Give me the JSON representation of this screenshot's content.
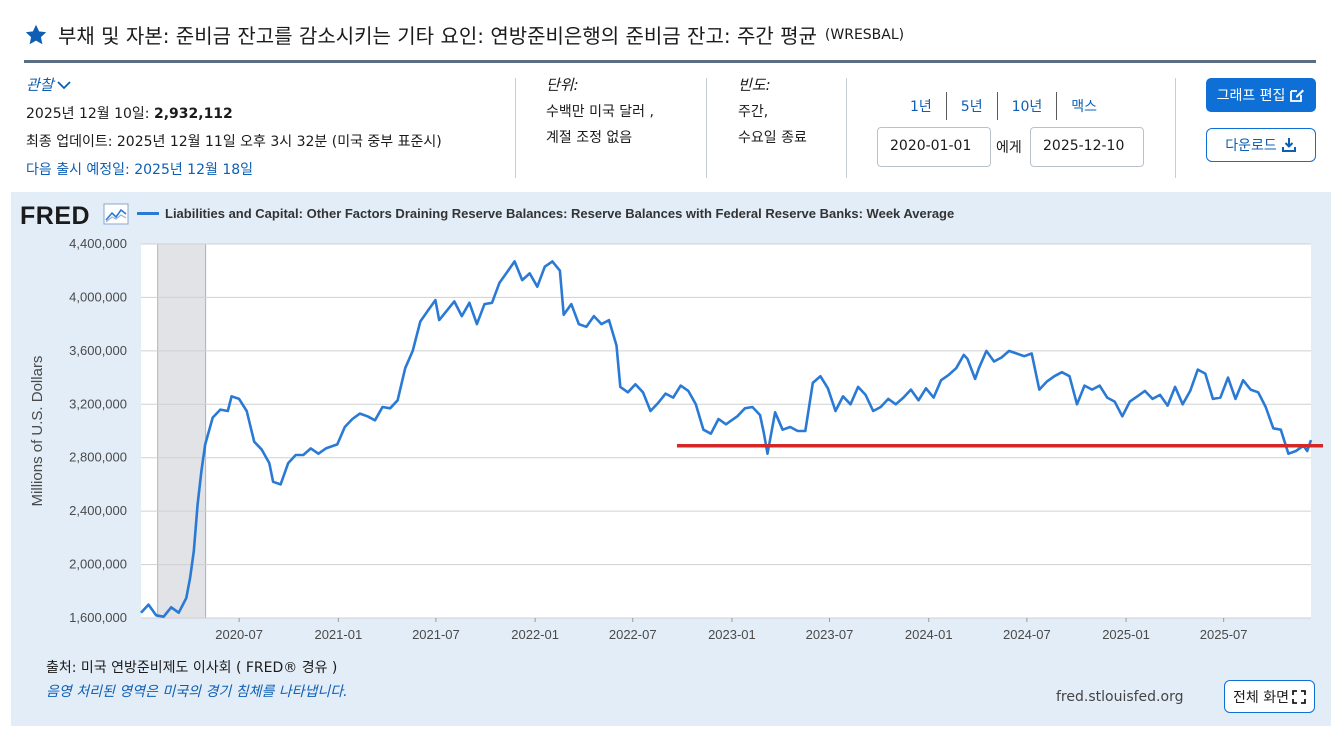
{
  "header": {
    "title": "부채 및 자본: 준비금 잔고를 감소시키는 기타 요인: 연방준비은행의 준비금 잔고: 주간 평균",
    "series_id": "(WRESBAL)"
  },
  "observation": {
    "heading": "관찰",
    "date_label": "2025년 12월 10일:",
    "value": "2,932,112",
    "updated": "최종 업데이트: 2025년 12월 11일 오후 3시 32분 (미국 중부 표준시)",
    "next_release": "다음 출시 예정일: 2025년 12월 18일"
  },
  "units": {
    "heading": "단위:",
    "line1": "수백만 미국 달러 ,",
    "line2": "계절 조정 없음"
  },
  "frequency": {
    "heading": "빈도:",
    "line1": "주간,",
    "line2": "수요일 종료"
  },
  "range": {
    "links": [
      "1년",
      "5년",
      "10년",
      "맥스"
    ],
    "start": "2020-01-01",
    "to_label": "에게",
    "end": "2025-12-10"
  },
  "buttons": {
    "edit": "그래프 편집",
    "download": "다운로드",
    "fullscreen": "전체 화면"
  },
  "footer": {
    "source": "출처: 미국 연방준비제도 이사회 ( FRED® 경유 )",
    "shade_note": "음영 처리된 영역은 미국의 경기 침체를 나타냅니다.",
    "site": "fred.stlouisfed.org"
  },
  "logo": "FRED",
  "colors": {
    "series": "#2a7ad5",
    "annotation_line": "#d62728",
    "recession": "#e1e3e6",
    "panel": "#e2edf7",
    "accent": "#0e6fd6"
  },
  "chart_data": {
    "type": "line",
    "legend": "Liabilities and Capital: Other Factors Draining Reserve Balances: Reserve Balances with Federal Reserve Banks: Week Average",
    "ylabel": "Millions of U.S. Dollars",
    "ylim": [
      1600000,
      4400000
    ],
    "yticks": [
      1600000,
      2000000,
      2400000,
      2800000,
      3200000,
      3600000,
      4000000,
      4400000
    ],
    "ytick_labels": [
      "1,600,000",
      "2,000,000",
      "2,400,000",
      "2,800,000",
      "3,200,000",
      "3,600,000",
      "4,000,000",
      "4,400,000"
    ],
    "xlim": [
      "2020-01-01",
      "2025-12-10"
    ],
    "xticks": [
      "2020-07-01",
      "2021-01-01",
      "2021-07-01",
      "2022-01-01",
      "2022-07-01",
      "2023-01-01",
      "2023-07-01",
      "2024-01-01",
      "2024-07-01",
      "2025-01-01",
      "2025-07-01"
    ],
    "xtick_labels": [
      "2020-07",
      "2021-01",
      "2021-07",
      "2022-01",
      "2022-07",
      "2023-01",
      "2023-07",
      "2024-01",
      "2024-07",
      "2025-01",
      "2025-07"
    ],
    "grid": true,
    "legend_position": "top-left",
    "recession": {
      "start": "2020-02-01",
      "end": "2020-04-30"
    },
    "annotation_line": {
      "y": 2890000,
      "x_start": "2022-09-21",
      "x_end": "2025-12-10"
    },
    "series": [
      {
        "name": "Liabilities and Capital: Other Factors Draining Reserve Balances: Reserve Balances with Federal Reserve Banks: Week Average",
        "points": [
          [
            "2020-01-01",
            1640000
          ],
          [
            "2020-01-15",
            1700000
          ],
          [
            "2020-01-29",
            1620000
          ],
          [
            "2020-02-12",
            1610000
          ],
          [
            "2020-02-26",
            1680000
          ],
          [
            "2020-03-11",
            1640000
          ],
          [
            "2020-03-25",
            1750000
          ],
          [
            "2020-04-01",
            1900000
          ],
          [
            "2020-04-08",
            2100000
          ],
          [
            "2020-04-15",
            2450000
          ],
          [
            "2020-04-22",
            2700000
          ],
          [
            "2020-04-29",
            2900000
          ],
          [
            "2020-05-13",
            3100000
          ],
          [
            "2020-05-27",
            3160000
          ],
          [
            "2020-06-10",
            3150000
          ],
          [
            "2020-06-17",
            3260000
          ],
          [
            "2020-07-01",
            3240000
          ],
          [
            "2020-07-15",
            3150000
          ],
          [
            "2020-07-29",
            2920000
          ],
          [
            "2020-08-12",
            2860000
          ],
          [
            "2020-08-26",
            2760000
          ],
          [
            "2020-09-02",
            2620000
          ],
          [
            "2020-09-16",
            2600000
          ],
          [
            "2020-09-30",
            2760000
          ],
          [
            "2020-10-14",
            2820000
          ],
          [
            "2020-10-28",
            2820000
          ],
          [
            "2020-11-11",
            2870000
          ],
          [
            "2020-11-25",
            2830000
          ],
          [
            "2020-12-09",
            2870000
          ],
          [
            "2020-12-30",
            2900000
          ],
          [
            "2021-01-13",
            3030000
          ],
          [
            "2021-01-27",
            3090000
          ],
          [
            "2021-02-10",
            3130000
          ],
          [
            "2021-02-24",
            3110000
          ],
          [
            "2021-03-10",
            3080000
          ],
          [
            "2021-03-24",
            3180000
          ],
          [
            "2021-04-07",
            3170000
          ],
          [
            "2021-04-21",
            3230000
          ],
          [
            "2021-05-05",
            3470000
          ],
          [
            "2021-05-19",
            3600000
          ],
          [
            "2021-06-02",
            3820000
          ],
          [
            "2021-06-16",
            3900000
          ],
          [
            "2021-06-30",
            3980000
          ],
          [
            "2021-07-07",
            3830000
          ],
          [
            "2021-07-21",
            3900000
          ],
          [
            "2021-08-04",
            3970000
          ],
          [
            "2021-08-18",
            3860000
          ],
          [
            "2021-09-01",
            3960000
          ],
          [
            "2021-09-15",
            3800000
          ],
          [
            "2021-09-29",
            3950000
          ],
          [
            "2021-10-13",
            3960000
          ],
          [
            "2021-10-27",
            4110000
          ],
          [
            "2021-11-10",
            4190000
          ],
          [
            "2021-11-24",
            4270000
          ],
          [
            "2021-12-08",
            4130000
          ],
          [
            "2021-12-22",
            4180000
          ],
          [
            "2022-01-05",
            4080000
          ],
          [
            "2022-01-19",
            4230000
          ],
          [
            "2022-02-02",
            4270000
          ],
          [
            "2022-02-16",
            4200000
          ],
          [
            "2022-02-23",
            3870000
          ],
          [
            "2022-03-09",
            3950000
          ],
          [
            "2022-03-23",
            3800000
          ],
          [
            "2022-04-06",
            3780000
          ],
          [
            "2022-04-20",
            3860000
          ],
          [
            "2022-05-04",
            3800000
          ],
          [
            "2022-05-18",
            3830000
          ],
          [
            "2022-06-01",
            3640000
          ],
          [
            "2022-06-08",
            3330000
          ],
          [
            "2022-06-22",
            3290000
          ],
          [
            "2022-07-06",
            3350000
          ],
          [
            "2022-07-20",
            3290000
          ],
          [
            "2022-08-03",
            3150000
          ],
          [
            "2022-08-17",
            3210000
          ],
          [
            "2022-08-31",
            3280000
          ],
          [
            "2022-09-14",
            3250000
          ],
          [
            "2022-09-28",
            3340000
          ],
          [
            "2022-10-12",
            3300000
          ],
          [
            "2022-10-26",
            3200000
          ],
          [
            "2022-11-09",
            3010000
          ],
          [
            "2022-11-23",
            2980000
          ],
          [
            "2022-12-07",
            3090000
          ],
          [
            "2022-12-21",
            3050000
          ],
          [
            "2022-12-28",
            3070000
          ],
          [
            "2023-01-11",
            3110000
          ],
          [
            "2023-01-25",
            3170000
          ],
          [
            "2023-02-08",
            3180000
          ],
          [
            "2023-02-22",
            3120000
          ],
          [
            "2023-03-01",
            2990000
          ],
          [
            "2023-03-08",
            2830000
          ],
          [
            "2023-03-22",
            3140000
          ],
          [
            "2023-04-05",
            3010000
          ],
          [
            "2023-04-19",
            3030000
          ],
          [
            "2023-05-03",
            3000000
          ],
          [
            "2023-05-17",
            3000000
          ],
          [
            "2023-05-31",
            3360000
          ],
          [
            "2023-06-14",
            3410000
          ],
          [
            "2023-06-28",
            3320000
          ],
          [
            "2023-07-12",
            3150000
          ],
          [
            "2023-07-26",
            3260000
          ],
          [
            "2023-08-09",
            3200000
          ],
          [
            "2023-08-23",
            3330000
          ],
          [
            "2023-09-06",
            3270000
          ],
          [
            "2023-09-20",
            3150000
          ],
          [
            "2023-10-04",
            3180000
          ],
          [
            "2023-10-18",
            3240000
          ],
          [
            "2023-11-01",
            3200000
          ],
          [
            "2023-11-15",
            3250000
          ],
          [
            "2023-11-29",
            3310000
          ],
          [
            "2023-12-13",
            3230000
          ],
          [
            "2023-12-27",
            3320000
          ],
          [
            "2024-01-10",
            3250000
          ],
          [
            "2024-01-24",
            3380000
          ],
          [
            "2024-02-07",
            3420000
          ],
          [
            "2024-02-21",
            3470000
          ],
          [
            "2024-03-06",
            3570000
          ],
          [
            "2024-03-13",
            3540000
          ],
          [
            "2024-03-27",
            3390000
          ],
          [
            "2024-04-03",
            3470000
          ],
          [
            "2024-04-17",
            3600000
          ],
          [
            "2024-05-01",
            3520000
          ],
          [
            "2024-05-15",
            3550000
          ],
          [
            "2024-05-29",
            3600000
          ],
          [
            "2024-06-12",
            3580000
          ],
          [
            "2024-06-26",
            3560000
          ],
          [
            "2024-07-10",
            3580000
          ],
          [
            "2024-07-24",
            3310000
          ],
          [
            "2024-08-07",
            3370000
          ],
          [
            "2024-08-21",
            3410000
          ],
          [
            "2024-09-04",
            3440000
          ],
          [
            "2024-09-18",
            3410000
          ],
          [
            "2024-10-02",
            3200000
          ],
          [
            "2024-10-16",
            3340000
          ],
          [
            "2024-10-30",
            3310000
          ],
          [
            "2024-11-13",
            3340000
          ],
          [
            "2024-11-27",
            3250000
          ],
          [
            "2024-12-11",
            3220000
          ],
          [
            "2024-12-25",
            3110000
          ],
          [
            "2025-01-08",
            3220000
          ],
          [
            "2025-01-22",
            3260000
          ],
          [
            "2025-02-05",
            3300000
          ],
          [
            "2025-02-19",
            3240000
          ],
          [
            "2025-03-05",
            3270000
          ],
          [
            "2025-03-19",
            3190000
          ],
          [
            "2025-04-02",
            3330000
          ],
          [
            "2025-04-16",
            3200000
          ],
          [
            "2025-04-30",
            3300000
          ],
          [
            "2025-05-14",
            3460000
          ],
          [
            "2025-05-28",
            3430000
          ],
          [
            "2025-06-11",
            3240000
          ],
          [
            "2025-06-25",
            3250000
          ],
          [
            "2025-07-09",
            3400000
          ],
          [
            "2025-07-23",
            3240000
          ],
          [
            "2025-08-06",
            3380000
          ],
          [
            "2025-08-20",
            3310000
          ],
          [
            "2025-09-03",
            3290000
          ],
          [
            "2025-09-17",
            3180000
          ],
          [
            "2025-10-01",
            3020000
          ],
          [
            "2025-10-15",
            3010000
          ],
          [
            "2025-10-29",
            2830000
          ],
          [
            "2025-11-12",
            2850000
          ],
          [
            "2025-11-26",
            2890000
          ],
          [
            "2025-12-03",
            2850000
          ],
          [
            "2025-12-10",
            2932112
          ]
        ]
      }
    ]
  }
}
